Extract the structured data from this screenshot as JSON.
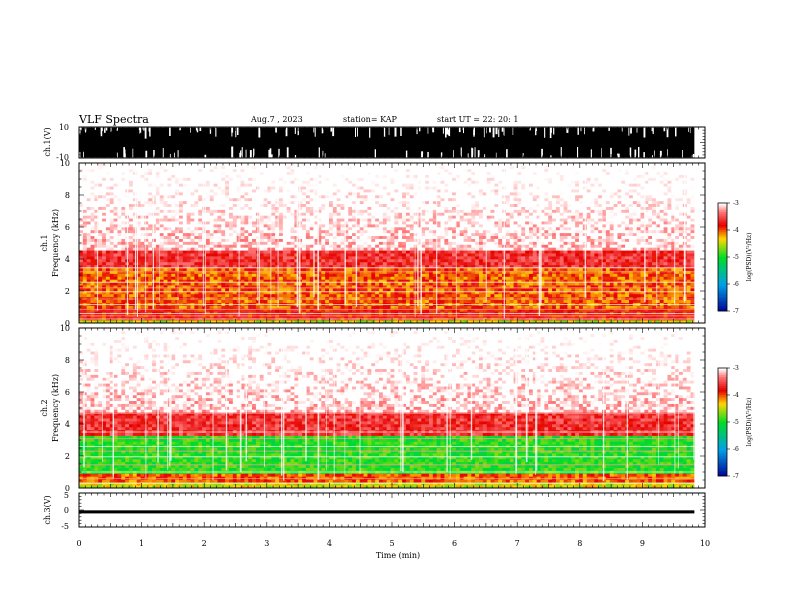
{
  "header": {
    "title": "VLF Spectra",
    "date": "Aug.7 , 2023",
    "station": "station= KAP",
    "start": "start UT = 22: 20: 1"
  },
  "chart_data": [
    {
      "type": "line",
      "panel": "ch1-waveform",
      "ylabel": "ch.1(V)",
      "ylim": [
        -10,
        10
      ],
      "ytick_labels": [
        "10",
        "-10"
      ],
      "xlim": [
        0,
        10
      ],
      "x_data_end": 9.83,
      "description_fill": "saturated black band between about -10 V and +10 V with brief white dropouts"
    },
    {
      "type": "heatmap",
      "panel": "ch1-spectrogram",
      "ylabel": "ch.1\nFrequency (kHz)",
      "ylim": [
        0,
        10
      ],
      "ytick_labels": [
        "0",
        "2",
        "4",
        "6",
        "8",
        "10"
      ],
      "xlim": [
        0,
        10
      ],
      "x_data_end": 9.83,
      "colorbar": {
        "label": "log(PSD)(V²/Hz)",
        "range": [
          -7,
          -3
        ],
        "tick_labels": [
          "-3",
          "-4",
          "-5",
          "-6",
          "-7"
        ]
      },
      "bands": [
        {
          "f_low": 0.0,
          "f_high": 0.2,
          "level": -4.5
        },
        {
          "f_low": 0.2,
          "f_high": 1.0,
          "level": -3.8
        },
        {
          "f_low": 1.0,
          "f_high": 3.5,
          "level": -4.0
        },
        {
          "f_low": 3.5,
          "f_high": 4.5,
          "level": -3.6
        },
        {
          "f_low": 4.5,
          "f_high": 10.0,
          "level": -3.1
        }
      ],
      "lines_khz": [
        0.25,
        0.45,
        0.6,
        0.85,
        1.15,
        1.5,
        1.95,
        2.2,
        2.55,
        3.2,
        3.45
      ]
    },
    {
      "type": "heatmap",
      "panel": "ch2-spectrogram",
      "ylabel": "ch.2\nFrequency (kHz)",
      "ylim": [
        0,
        10
      ],
      "ytick_labels": [
        "0",
        "2",
        "4",
        "6",
        "8",
        "10"
      ],
      "xlim": [
        0,
        10
      ],
      "x_data_end": 9.83,
      "colorbar": {
        "label": "log(PSD)(V²/Hz)",
        "range": [
          -7,
          -3
        ],
        "tick_labels": [
          "-3",
          "-4",
          "-5",
          "-6",
          "-7"
        ]
      },
      "bands": [
        {
          "f_low": 0.0,
          "f_high": 0.3,
          "level": -4.4
        },
        {
          "f_low": 0.3,
          "f_high": 0.9,
          "level": -4.0
        },
        {
          "f_low": 0.9,
          "f_high": 3.2,
          "level": -4.9
        },
        {
          "f_low": 3.2,
          "f_high": 4.7,
          "level": -3.6
        },
        {
          "f_low": 4.7,
          "f_high": 10.0,
          "level": -3.1
        }
      ],
      "lines_khz": [
        0.3,
        0.6,
        1.0,
        1.45,
        1.95,
        2.3,
        2.6,
        3.1,
        3.5,
        4.65
      ]
    },
    {
      "type": "line",
      "panel": "ch3-waveform",
      "ylabel": "ch.3(V)",
      "ylim": [
        -5,
        5
      ],
      "ytick_labels": [
        "5",
        "0",
        "-5"
      ],
      "xlim": [
        0,
        10
      ],
      "x_data_end": 9.83,
      "band": [
        -1.0,
        -0.1
      ]
    }
  ],
  "xaxis": {
    "label": "Time (min)",
    "tick_labels": [
      "0",
      "1",
      "2",
      "3",
      "4",
      "5",
      "6",
      "7",
      "8",
      "9",
      "10"
    ]
  },
  "colors": {
    "strong": "#e00000",
    "mid": "#ffd800",
    "weak": "#00cc33",
    "low": "#0000b0"
  }
}
